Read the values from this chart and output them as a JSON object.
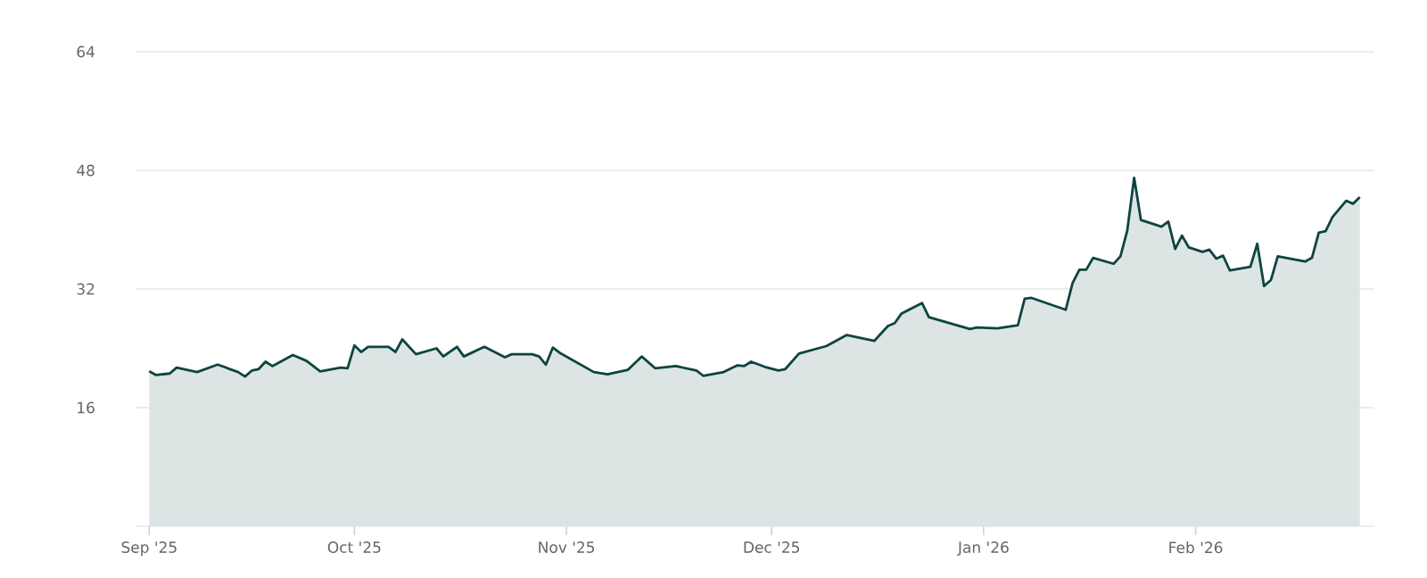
{
  "chart_data": {
    "type": "area",
    "grid": "y",
    "xlim": [
      "2025-08-30",
      "2026-02-27"
    ],
    "xticks": [
      {
        "value": "2025-09-01",
        "label": "Sep '25"
      },
      {
        "value": "2025-10-01",
        "label": "Oct '25"
      },
      {
        "value": "2025-11-01",
        "label": "Nov '25"
      },
      {
        "value": "2025-12-01",
        "label": "Dec '25"
      },
      {
        "value": "2026-01-01",
        "label": "Jan '26"
      },
      {
        "value": "2026-02-01",
        "label": "Feb '26"
      }
    ],
    "ylim": [
      0,
      64
    ],
    "yticks": [
      16,
      32,
      48,
      64
    ],
    "series": [
      {
        "color": "#0d4540",
        "x": [
          "2025-09-01",
          "2025-09-02",
          "2025-09-04",
          "2025-09-05",
          "2025-09-08",
          "2025-09-11",
          "2025-09-14",
          "2025-09-15",
          "2025-09-16",
          "2025-09-17",
          "2025-09-18",
          "2025-09-19",
          "2025-09-22",
          "2025-09-24",
          "2025-09-26",
          "2025-09-29",
          "2025-09-30",
          "2025-10-01",
          "2025-10-02",
          "2025-10-03",
          "2025-10-06",
          "2025-10-07",
          "2025-10-08",
          "2025-10-10",
          "2025-10-13",
          "2025-10-14",
          "2025-10-16",
          "2025-10-17",
          "2025-10-20",
          "2025-10-23",
          "2025-10-24",
          "2025-10-27",
          "2025-10-28",
          "2025-10-29",
          "2025-10-30",
          "2025-10-31",
          "2025-11-05",
          "2025-11-07",
          "2025-11-10",
          "2025-11-12",
          "2025-11-14",
          "2025-11-17",
          "2025-11-20",
          "2025-11-21",
          "2025-11-24",
          "2025-11-26",
          "2025-11-27",
          "2025-11-28",
          "2025-11-30",
          "2025-12-02",
          "2025-12-03",
          "2025-12-05",
          "2025-12-09",
          "2025-12-12",
          "2025-12-16",
          "2025-12-18",
          "2025-12-19",
          "2025-12-20",
          "2025-12-23",
          "2025-12-24",
          "2025-12-30",
          "2025-12-31",
          "2026-01-03",
          "2026-01-06",
          "2026-01-07",
          "2026-01-08",
          "2026-01-13",
          "2026-01-14",
          "2026-01-15",
          "2026-01-16",
          "2026-01-17",
          "2026-01-20",
          "2026-01-21",
          "2026-01-22",
          "2026-01-23",
          "2026-01-24",
          "2026-01-27",
          "2026-01-28",
          "2026-01-29",
          "2026-01-30",
          "2026-01-31",
          "2026-02-02",
          "2026-02-03",
          "2026-02-04",
          "2026-02-05",
          "2026-02-06",
          "2026-02-09",
          "2026-02-10",
          "2026-02-11",
          "2026-02-12",
          "2026-02-13",
          "2026-02-17",
          "2026-02-18",
          "2026-02-19",
          "2026-02-20",
          "2026-02-21",
          "2026-02-23",
          "2026-02-24",
          "2026-02-25"
        ],
        "values": [
          20.9,
          20.4,
          20.6,
          21.4,
          20.8,
          21.8,
          20.8,
          20.2,
          21.0,
          21.2,
          22.2,
          21.6,
          23.1,
          22.3,
          20.9,
          21.4,
          21.3,
          24.4,
          23.5,
          24.2,
          24.2,
          23.5,
          25.2,
          23.2,
          24.0,
          22.9,
          24.2,
          22.9,
          24.2,
          22.8,
          23.2,
          23.2,
          22.9,
          21.8,
          24.1,
          23.4,
          20.8,
          20.5,
          21.1,
          22.9,
          21.3,
          21.6,
          21.0,
          20.3,
          20.8,
          21.7,
          21.6,
          22.2,
          21.5,
          21.0,
          21.2,
          23.3,
          24.3,
          25.8,
          25.0,
          27.0,
          27.4,
          28.7,
          30.1,
          28.2,
          26.6,
          26.8,
          26.7,
          27.1,
          30.7,
          30.8,
          29.2,
          32.8,
          34.6,
          34.6,
          36.2,
          35.4,
          36.4,
          39.9,
          47.0,
          41.3,
          40.4,
          41.1,
          37.4,
          39.2,
          37.6,
          37.0,
          37.3,
          36.1,
          36.5,
          34.5,
          35.0,
          38.1,
          32.4,
          33.2,
          36.4,
          35.7,
          36.2,
          39.6,
          39.8,
          41.7,
          43.9,
          43.5,
          44.4
        ]
      }
    ]
  }
}
